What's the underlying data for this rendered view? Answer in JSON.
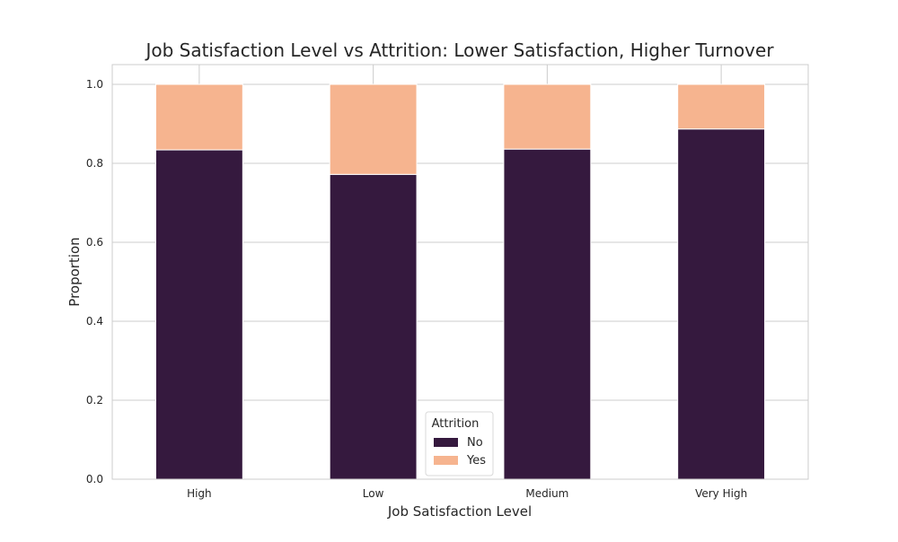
{
  "chart_data": {
    "type": "bar",
    "stacked": true,
    "title": "Job Satisfaction Level vs Attrition: Lower Satisfaction, Higher Turnover",
    "xlabel": "Job Satisfaction Level",
    "ylabel": "Proportion",
    "categories": [
      "High",
      "Low",
      "Medium",
      "Very High"
    ],
    "series": [
      {
        "name": "No",
        "values": [
          0.834,
          0.772,
          0.836,
          0.887
        ],
        "color": "#35193e"
      },
      {
        "name": "Yes",
        "values": [
          0.166,
          0.228,
          0.164,
          0.113
        ],
        "color": "#f6b48f"
      }
    ],
    "ylim": [
      0,
      1.05
    ],
    "yticks": [
      "0.0",
      "0.2",
      "0.4",
      "0.6",
      "0.8",
      "1.0"
    ],
    "grid": true,
    "legend": {
      "title": "Attrition",
      "placement": "lower-center"
    }
  }
}
